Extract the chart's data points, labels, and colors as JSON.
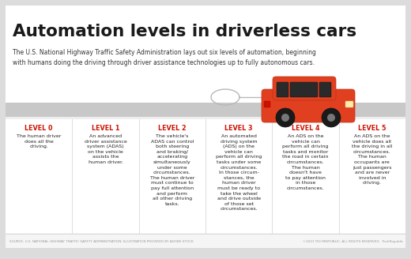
{
  "title": "Automation levels in driverless cars",
  "subtitle": "The U.S. National Highway Traffic Safety Administration lays out six levels of automation, beginning\nwith humans doing the driving through driver assistance technologies up to fully autonomous cars.",
  "bg_color": "#dcdcdc",
  "card_bg": "#ffffff",
  "bar_color": "#c8c8c8",
  "level_color": "#cc1100",
  "levels": [
    {
      "label": "LEVEL 0",
      "text": "The human driver\ndoes all the\ndriving."
    },
    {
      "label": "LEVEL 1",
      "text": "An advanced\ndriver assistance\nsystem (ADAS)\non the vehicle\nassists the\nhuman driver."
    },
    {
      "label": "LEVEL 2",
      "text": "The vehicle's\nADAS can control\nboth steering\nand braking/\naccelerating\nsimultaneously\nunder some\ncircumstances.\nThe human driver\nmust continue to\npay full attention\nand perform\nall other driving\ntasks."
    },
    {
      "label": "LEVEL 3",
      "text": "An automated\ndriving system\n(ADS) on the\nvehicle can\nperform all driving\ntasks under some\ncircumstances.\nIn those circum-\nstances, the\nhuman driver\nmust be ready to\ntake the wheel\nand drive outside\nof those set\ncircumstances."
    },
    {
      "label": "LEVEL 4",
      "text": "An ADS on the\nvehicle can\nperform all driving\ntasks and monitor\nthe road in certain\ncircumstances.\nThe human\ndoesn't have\nto pay attention\nin those\ncircumstances."
    },
    {
      "label": "LEVEL 5",
      "text": "An ADS on the\nvehicle does all\nthe driving in all\ncircumstances.\nThe human\noccupants are\njust passengers\nand are never\ninvolved in\ndriving."
    }
  ],
  "footer_left": "SOURCE: U.S. NATIONAL HIGHWAY TRAFFIC SAFETY ADMINISTRATION; ILLUSTRATION PROVIDED BY ADOBE STOCK",
  "footer_right": "©2021 TECHREPUBLIC, ALL RIGHTS RESERVED.  TechRepublic"
}
